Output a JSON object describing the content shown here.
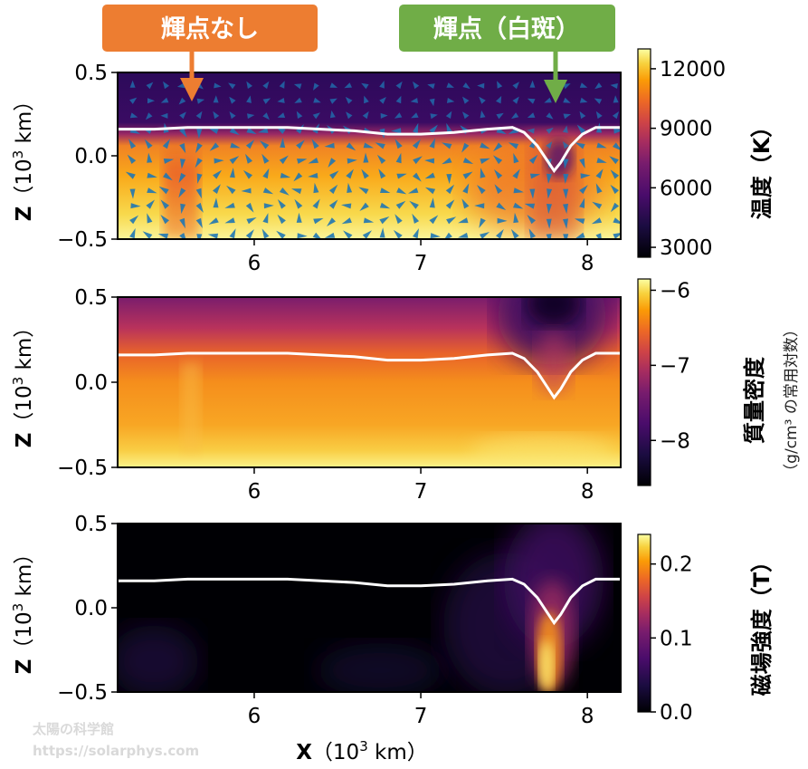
{
  "callouts": [
    {
      "label": "輝点なし",
      "color": "#ed7d31",
      "target_x": 5.67
    },
    {
      "label": "輝点（白斑）",
      "color": "#70ad47",
      "target_x": 7.82
    }
  ],
  "chart_data": [
    {
      "type": "heatmap",
      "name": "temperature",
      "ylabel": "Z",
      "ylabel_unit_prefix": "（10",
      "ylabel_unit_exp": "3",
      "ylabel_unit_suffix": " km）",
      "xlim": [
        5.18,
        8.2
      ],
      "ylim": [
        -0.5,
        0.5
      ],
      "xticks": [
        6,
        7,
        8
      ],
      "yticks": [
        0.5,
        0.0,
        -0.5
      ],
      "ytick_labels": [
        "0.5",
        "0.0",
        "−0.5"
      ],
      "xtick_labels": [
        "6",
        "7",
        "8"
      ],
      "colorbar": {
        "title": "温度（K）",
        "subtitle": "",
        "range": [
          2500,
          13000
        ],
        "ticks": [
          12000,
          9000,
          6000,
          3000
        ],
        "tick_labels": [
          "12000",
          "9000",
          "6000",
          "3000"
        ],
        "colormap": "inferno"
      },
      "velocity_arrows": true,
      "arrow_color": "#1f77b4"
    },
    {
      "type": "heatmap",
      "name": "mass-density",
      "ylabel": "Z",
      "ylabel_unit_prefix": "（10",
      "ylabel_unit_exp": "3",
      "ylabel_unit_suffix": " km）",
      "xlim": [
        5.18,
        8.2
      ],
      "ylim": [
        -0.5,
        0.5
      ],
      "xticks": [
        6,
        7,
        8
      ],
      "yticks": [
        0.5,
        0.0,
        -0.5
      ],
      "ytick_labels": [
        "0.5",
        "0.0",
        "−0.5"
      ],
      "xtick_labels": [
        "6",
        "7",
        "8"
      ],
      "colorbar": {
        "title": "質量密度",
        "subtitle": "（g/cm³ の常用対数）",
        "range": [
          -8.6,
          -5.85
        ],
        "ticks": [
          -6,
          -7,
          -8
        ],
        "tick_labels": [
          "−6",
          "−7",
          "−8"
        ],
        "colormap": "inferno"
      }
    },
    {
      "type": "heatmap",
      "name": "magnetic-field",
      "ylabel": "Z",
      "ylabel_unit_prefix": "（10",
      "ylabel_unit_exp": "3",
      "ylabel_unit_suffix": " km）",
      "xlabel": "X",
      "xlabel_unit_prefix": "（10",
      "xlabel_unit_exp": "3",
      "xlabel_unit_suffix": " km）",
      "xlim": [
        5.18,
        8.2
      ],
      "ylim": [
        -0.5,
        0.5
      ],
      "xticks": [
        6,
        7,
        8
      ],
      "yticks": [
        0.5,
        0.0,
        -0.5
      ],
      "ytick_labels": [
        "0.5",
        "0.0",
        "−0.5"
      ],
      "xtick_labels": [
        "6",
        "7",
        "8"
      ],
      "colorbar": {
        "title": "磁場強度（T）",
        "subtitle": "",
        "range": [
          0.0,
          0.24
        ],
        "ticks": [
          0.2,
          0.1,
          0.0
        ],
        "tick_labels": [
          "0.2",
          "0.1",
          "0.0"
        ],
        "colormap": "inferno"
      }
    }
  ],
  "surface_line": {
    "color": "#ffffff",
    "points": [
      [
        5.18,
        0.16
      ],
      [
        5.4,
        0.16
      ],
      [
        5.6,
        0.17
      ],
      [
        5.8,
        0.17
      ],
      [
        6.0,
        0.17
      ],
      [
        6.2,
        0.17
      ],
      [
        6.4,
        0.16
      ],
      [
        6.6,
        0.15
      ],
      [
        6.8,
        0.13
      ],
      [
        7.0,
        0.13
      ],
      [
        7.2,
        0.14
      ],
      [
        7.4,
        0.16
      ],
      [
        7.55,
        0.17
      ],
      [
        7.62,
        0.14
      ],
      [
        7.7,
        0.06
      ],
      [
        7.76,
        -0.03
      ],
      [
        7.8,
        -0.09
      ],
      [
        7.84,
        -0.04
      ],
      [
        7.9,
        0.06
      ],
      [
        7.97,
        0.13
      ],
      [
        8.05,
        0.17
      ],
      [
        8.2,
        0.17
      ]
    ]
  },
  "watermark": {
    "line1": "太陽の科学館",
    "line2": "https://solarphys.com"
  }
}
